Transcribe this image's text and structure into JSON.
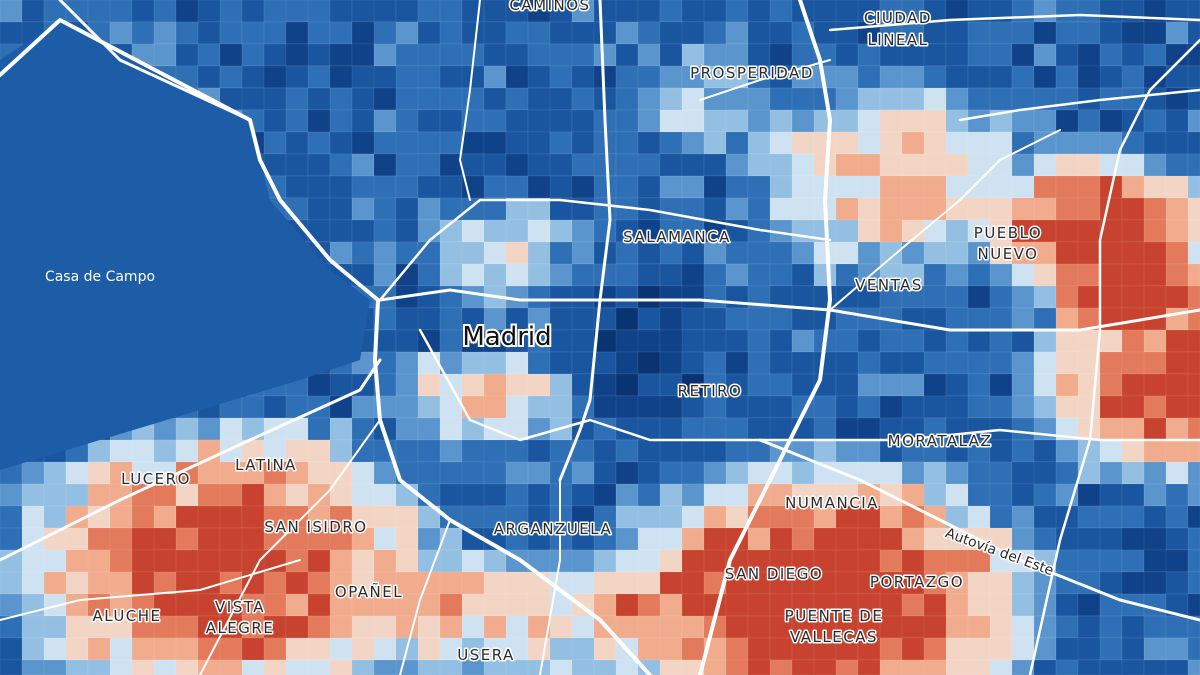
{
  "labels": [
    {
      "lines": [
        "CAMINOS"
      ]
    },
    {
      "lines": [
        "CIUDAD",
        "LINEAL"
      ]
    },
    {
      "lines": [
        "PROSPERIDAD"
      ]
    },
    {
      "lines": [
        "SALAMANCA"
      ]
    },
    {
      "lines": [
        "PUEBLO",
        "NUEVO"
      ]
    },
    {
      "lines": [
        "Casa de Campo"
      ]
    },
    {
      "lines": [
        "Madrid"
      ]
    },
    {
      "lines": [
        "VENTAS"
      ]
    },
    {
      "lines": [
        "RETIRO"
      ]
    },
    {
      "lines": [
        "MORATALAZ"
      ]
    },
    {
      "lines": [
        "LUCERO"
      ]
    },
    {
      "lines": [
        "LATINA"
      ]
    },
    {
      "lines": [
        "SAN ISIDRO"
      ]
    },
    {
      "lines": [
        "ARGANZUELA"
      ]
    },
    {
      "lines": [
        "NUMANCIA"
      ]
    },
    {
      "lines": [
        "Autovía del Este"
      ]
    },
    {
      "lines": [
        "SAN DIEGO"
      ]
    },
    {
      "lines": [
        "PORTAZGO"
      ]
    },
    {
      "lines": [
        "ALUCHE"
      ]
    },
    {
      "lines": [
        "VISTA",
        "ALEGRE"
      ]
    },
    {
      "lines": [
        "OPAÑEL"
      ]
    },
    {
      "lines": [
        "PUENTE DE",
        "VALLECAS"
      ]
    },
    {
      "lines": [
        "USERA"
      ]
    }
  ]
}
